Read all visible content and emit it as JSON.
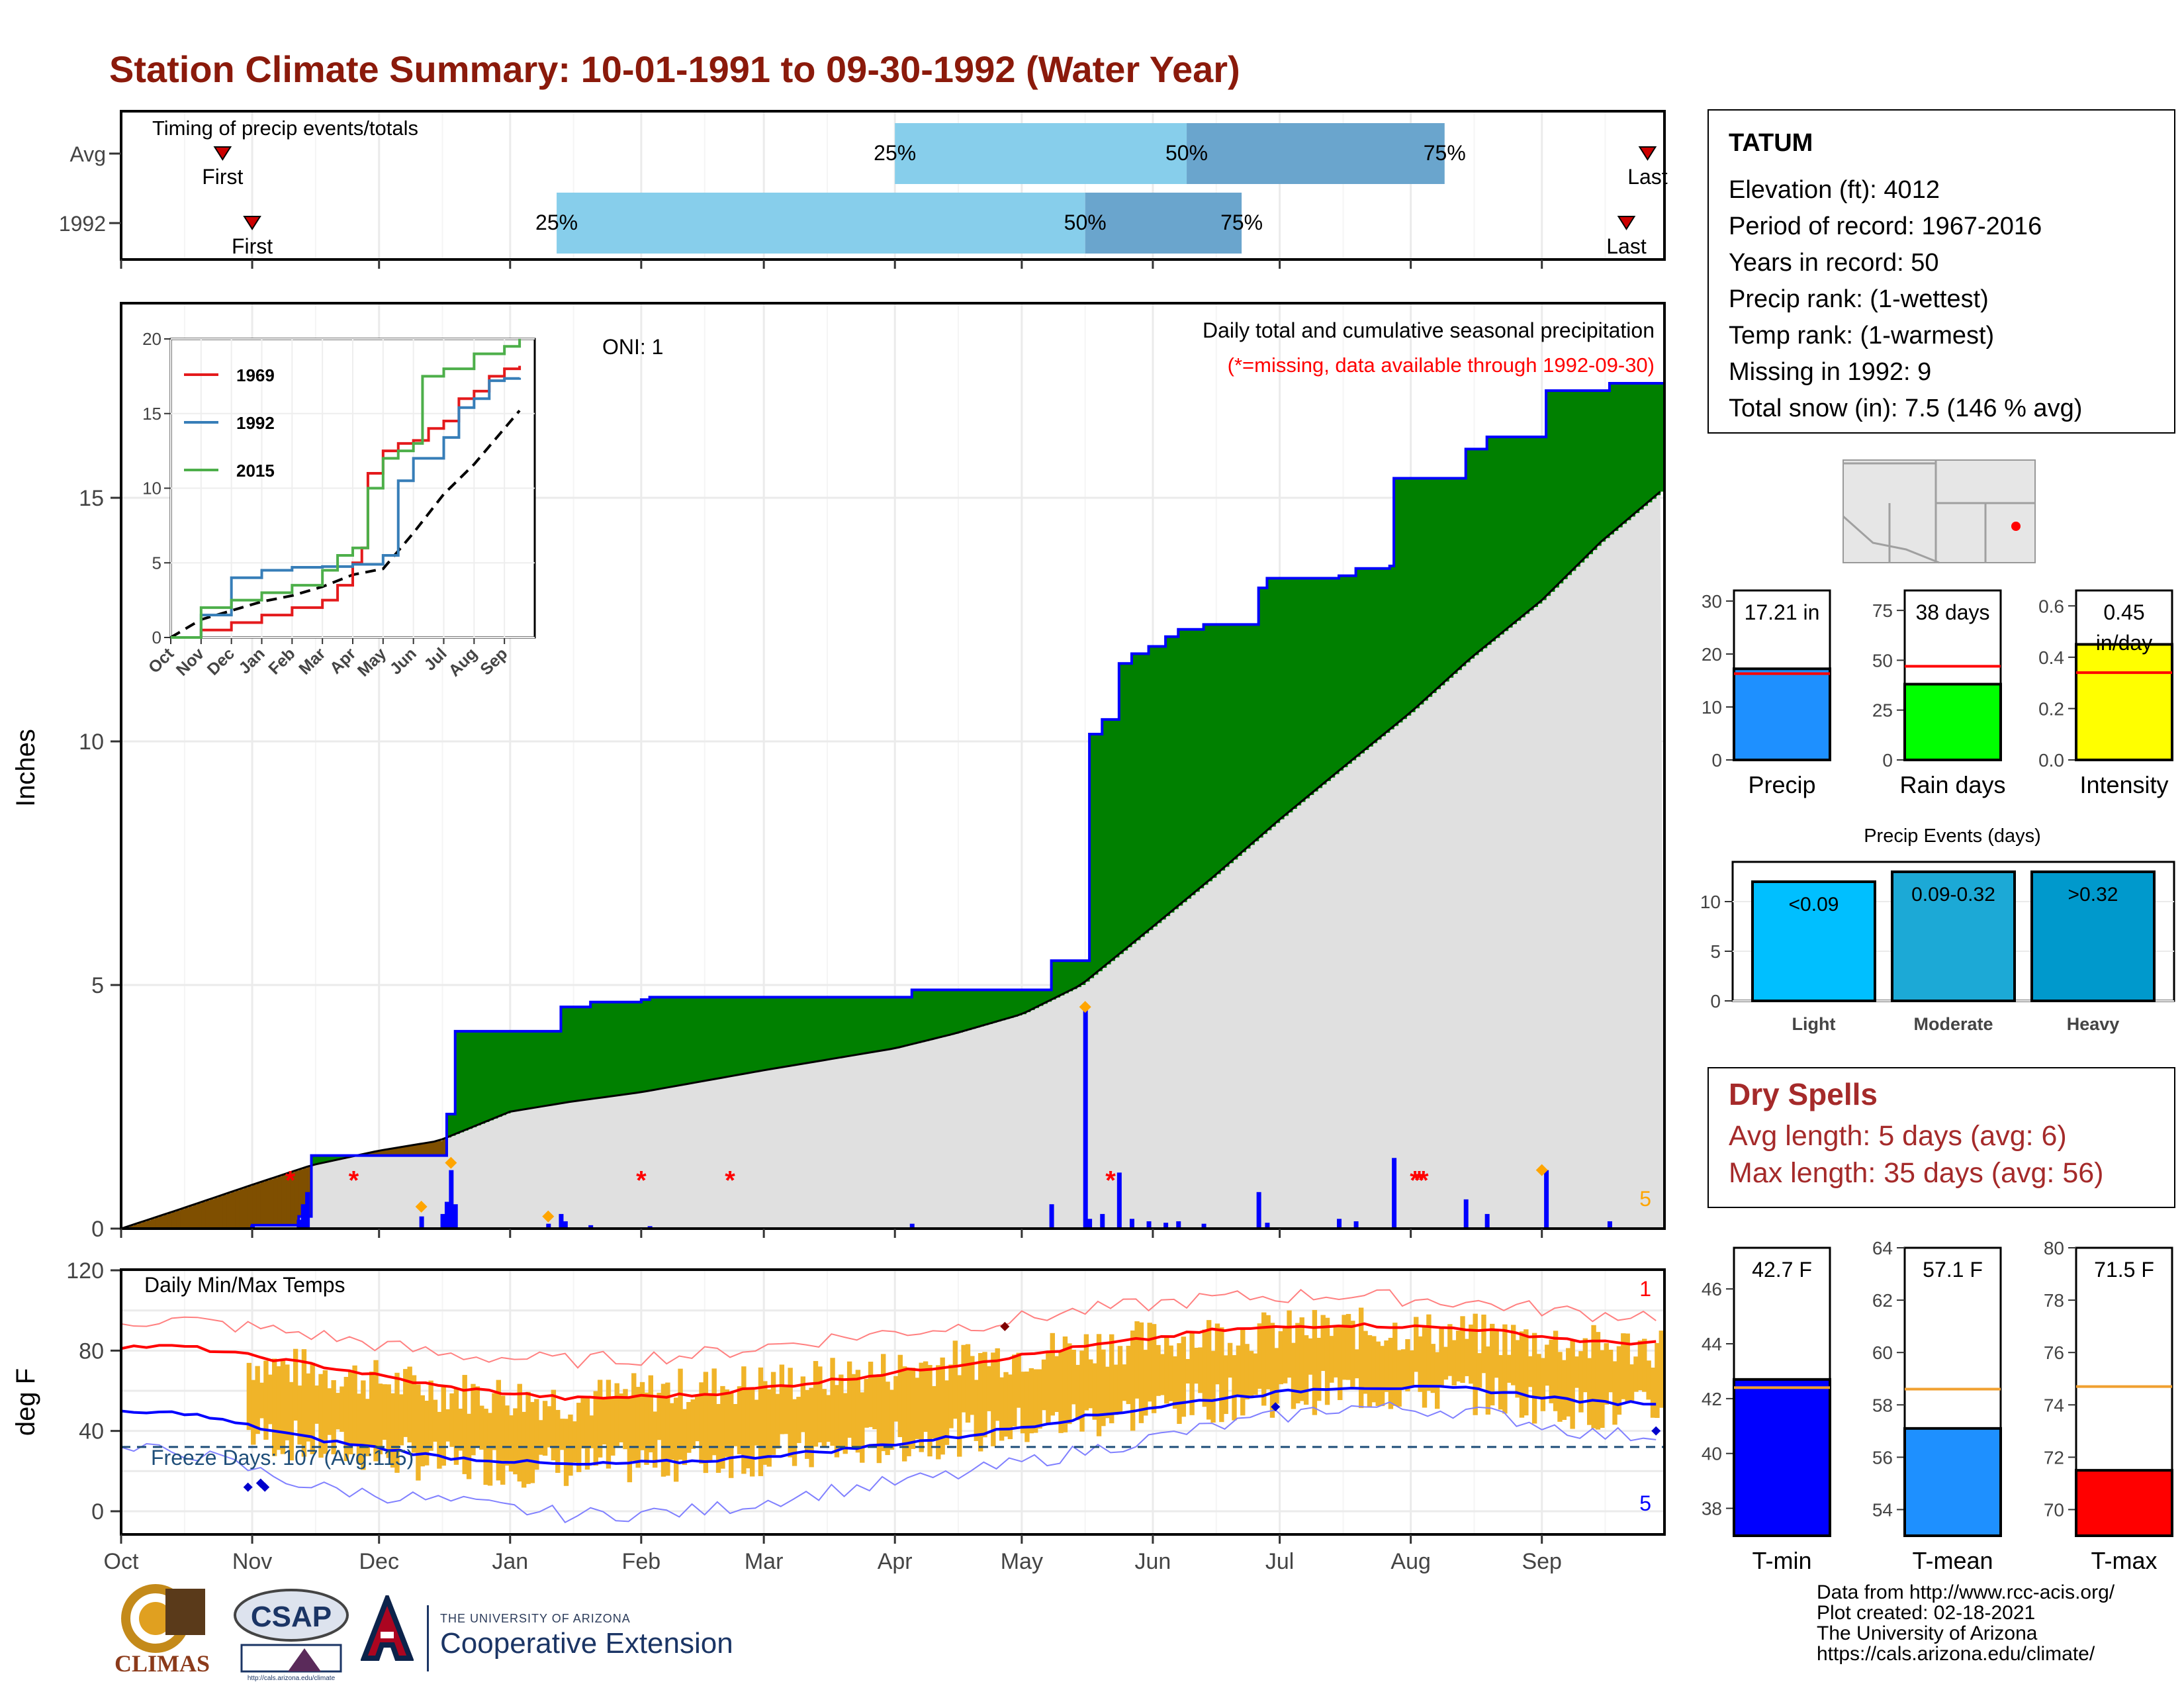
{
  "page_title": "Station Climate Summary: 10-01-1991 to 09-30-1992 (Water Year)",
  "station": {
    "name": "TATUM",
    "elevation": "Elevation (ft): 4012",
    "period": "Period of record: 1967-2016",
    "years": "Years in record: 50",
    "precip_rank": "Precip rank:  (1-wettest)",
    "temp_rank": "Temp rank:  (1-warmest)",
    "missing": "Missing in 1992: 9",
    "snow": "Total snow (in): 7.5 (146 % avg)"
  },
  "dry_spells": {
    "title": "Dry Spells",
    "avg_length": "Avg length: 5 days (avg: 6)",
    "max_length": "Max length: 35 days (avg: 56)"
  },
  "credits": {
    "line1": "Data from http://www.rcc-acis.org/",
    "line2": "Plot created: 02-18-2021",
    "line3": "The University of Arizona",
    "line4": "https://cals.arizona.edu/climate/"
  },
  "logos": {
    "climas": "CLIMAS",
    "csap": "CSAP",
    "ua_small": "THE UNIVERSITY OF ARIZONA",
    "ua_big": "Cooperative Extension",
    "csap_url": "http://cals.arizona.edu/climate"
  },
  "colors": {
    "title": "#8b1a0b",
    "above_avg": "#008000",
    "below_avg": "#7f4f00",
    "avg_fill": "#e0e0e0",
    "series_1969": "#e41a1c",
    "series_1992": "#377eb8",
    "series_2015": "#4daf4a",
    "precip_bar": "#1e90ff",
    "rain_bar": "#00ff00",
    "intensity_bar": "#ffff00",
    "light": "#00bfff",
    "moderate": "#1ca9d6",
    "heavy": "#0099cc",
    "tmin": "#0000ff",
    "tmean": "#1e90ff",
    "tmax": "#ff0000"
  },
  "chart_data": [
    {
      "id": "timing",
      "type": "bar",
      "title": "Timing of precip events/totals",
      "categories": [
        "Avg",
        "1992"
      ],
      "x_months": [
        "Oct",
        "Nov",
        "Dec",
        "Jan",
        "Feb",
        "Mar",
        "Apr",
        "May",
        "Jun",
        "Jul",
        "Aug",
        "Sep"
      ],
      "rows": [
        {
          "label": "Avg",
          "first": "1991-10-25",
          "p25": "1992-04-01",
          "p50": "1992-06-09",
          "p75": "1992-08-09",
          "last": "1992-09-26",
          "first_label": "First",
          "last_label": "Last",
          "p25_label": "25%",
          "p50_label": "50%",
          "p75_label": "75%"
        },
        {
          "label": "1992",
          "first": "1991-11-01",
          "p25": "1992-01-12",
          "p50": "1992-05-16",
          "p75": "1992-06-22",
          "last": "1992-09-21",
          "first_label": "First",
          "last_label": "Last",
          "p25_label": "25%",
          "p50_label": "50%",
          "p75_label": "75%"
        }
      ]
    },
    {
      "id": "precip",
      "type": "area",
      "title": "Daily total and cumulative seasonal precipitation",
      "subtitle": "(*=missing, data available through 1992-09-30)",
      "oni_label": "ONI: 1",
      "corner_label": "5",
      "ylabel": "Inches",
      "ylim": [
        0,
        19
      ],
      "yticks": [
        0,
        5,
        10,
        15
      ],
      "x_months": [
        "Oct",
        "Nov",
        "Dec",
        "Jan",
        "Feb",
        "Mar",
        "Apr",
        "May",
        "Jun",
        "Jul",
        "Aug",
        "Sep"
      ],
      "cumulative_1992": [
        [
          "1991-10-01",
          0
        ],
        [
          "1991-11-01",
          0.07
        ],
        [
          "1991-11-12",
          0.25
        ],
        [
          "1991-11-15",
          1.5
        ],
        [
          "1991-12-16",
          1.5
        ],
        [
          "1991-12-17",
          2.35
        ],
        [
          "1991-12-19",
          4.05
        ],
        [
          "1992-01-11",
          4.05
        ],
        [
          "1992-01-13",
          4.55
        ],
        [
          "1992-01-20",
          4.65
        ],
        [
          "1992-02-01",
          4.7
        ],
        [
          "1992-02-03",
          4.75
        ],
        [
          "1992-04-03",
          4.75
        ],
        [
          "1992-04-05",
          4.9
        ],
        [
          "1992-05-01",
          4.9
        ],
        [
          "1992-05-08",
          5.5
        ],
        [
          "1992-05-16",
          5.5
        ],
        [
          "1992-05-17",
          10.15
        ],
        [
          "1992-05-20",
          10.45
        ],
        [
          "1992-05-24",
          11.6
        ],
        [
          "1992-05-27",
          11.8
        ],
        [
          "1992-05-31",
          11.95
        ],
        [
          "1992-06-04",
          12.15
        ],
        [
          "1992-06-07",
          12.3
        ],
        [
          "1992-06-13",
          12.4
        ],
        [
          "1992-06-26",
          13.15
        ],
        [
          "1992-06-28",
          13.35
        ],
        [
          "1992-07-15",
          13.4
        ],
        [
          "1992-07-19",
          13.55
        ],
        [
          "1992-07-27",
          13.6
        ],
        [
          "1992-07-28",
          15.4
        ],
        [
          "1992-08-13",
          15.4
        ],
        [
          "1992-08-14",
          16.0
        ],
        [
          "1992-08-19",
          16.25
        ],
        [
          "1992-09-01",
          16.25
        ],
        [
          "1992-09-02",
          17.2
        ],
        [
          "1992-09-16",
          17.2
        ],
        [
          "1992-09-17",
          17.35
        ],
        [
          "1992-09-30",
          17.35
        ]
      ],
      "cumulative_avg": [
        [
          "1991-10-01",
          0
        ],
        [
          "1991-10-15",
          0.4
        ],
        [
          "1991-11-01",
          0.9
        ],
        [
          "1991-11-15",
          1.3
        ],
        [
          "1991-12-01",
          1.6
        ],
        [
          "1991-12-15",
          1.8
        ],
        [
          "1992-01-01",
          2.4
        ],
        [
          "1992-01-15",
          2.6
        ],
        [
          "1992-02-01",
          2.8
        ],
        [
          "1992-03-01",
          3.25
        ],
        [
          "1992-04-01",
          3.7
        ],
        [
          "1992-04-15",
          4.0
        ],
        [
          "1992-05-01",
          4.4
        ],
        [
          "1992-05-15",
          5.0
        ],
        [
          "1992-06-01",
          6.2
        ],
        [
          "1992-06-15",
          7.2
        ],
        [
          "1992-07-01",
          8.4
        ],
        [
          "1992-07-15",
          9.4
        ],
        [
          "1992-08-01",
          10.6
        ],
        [
          "1992-08-15",
          11.7
        ],
        [
          "1992-09-01",
          12.9
        ],
        [
          "1992-09-15",
          14.1
        ],
        [
          "1992-09-30",
          15.2
        ]
      ],
      "daily_1992": [
        [
          "1991-11-01",
          0.07
        ],
        [
          "1991-11-12",
          0.18
        ],
        [
          "1991-11-13",
          0.5
        ],
        [
          "1991-11-14",
          0.75
        ],
        [
          "1991-12-11",
          0.25
        ],
        [
          "1991-12-16",
          0.3
        ],
        [
          "1991-12-17",
          0.55
        ],
        [
          "1991-12-18",
          1.2
        ],
        [
          "1991-12-19",
          0.5
        ],
        [
          "1992-01-10",
          0.1
        ],
        [
          "1992-01-13",
          0.3
        ],
        [
          "1992-01-14",
          0.15
        ],
        [
          "1992-01-20",
          0.07
        ],
        [
          "1992-02-03",
          0.05
        ],
        [
          "1992-04-05",
          0.1
        ],
        [
          "1992-05-08",
          0.5
        ],
        [
          "1992-05-16",
          4.5
        ],
        [
          "1992-05-17",
          0.2
        ],
        [
          "1992-05-20",
          0.3
        ],
        [
          "1992-05-24",
          1.15
        ],
        [
          "1992-05-27",
          0.2
        ],
        [
          "1992-05-31",
          0.15
        ],
        [
          "1992-06-04",
          0.12
        ],
        [
          "1992-06-07",
          0.15
        ],
        [
          "1992-06-13",
          0.1
        ],
        [
          "1992-06-26",
          0.75
        ],
        [
          "1992-06-28",
          0.12
        ],
        [
          "1992-07-15",
          0.2
        ],
        [
          "1992-07-19",
          0.15
        ],
        [
          "1992-07-28",
          1.45
        ],
        [
          "1992-08-14",
          0.6
        ],
        [
          "1992-08-19",
          0.3
        ],
        [
          "1992-09-02",
          1.2
        ],
        [
          "1992-09-17",
          0.15
        ]
      ],
      "missing": [
        "1991-11-10",
        "1991-11-25",
        "1992-02-01",
        "1992-02-22",
        "1992-05-22",
        "1992-08-02",
        "1992-08-03",
        "1992-08-04"
      ],
      "snow_events": [
        [
          "1991-12-11",
          0.45
        ],
        [
          "1991-12-18",
          1.35
        ],
        [
          "1992-01-10",
          0.25
        ],
        [
          "1992-05-16",
          4.55
        ],
        [
          "1992-09-01",
          1.2
        ]
      ],
      "inset": {
        "type": "line",
        "ylim": [
          0,
          20
        ],
        "yticks": [
          0,
          5,
          10,
          15,
          20
        ],
        "x_months": [
          "Oct",
          "Nov",
          "Dec",
          "Jan",
          "Feb",
          "Mar",
          "Apr",
          "May",
          "Jun",
          "Jul",
          "Aug",
          "Sep"
        ],
        "series": [
          {
            "name": "1969",
            "points": [
              [
                0,
                0
              ],
              [
                1,
                0.5
              ],
              [
                2,
                1
              ],
              [
                3,
                1.5
              ],
              [
                4,
                2
              ],
              [
                5,
                2.5
              ],
              [
                5.5,
                3.5
              ],
              [
                6,
                5
              ],
              [
                6.3,
                6
              ],
              [
                6.5,
                11
              ],
              [
                7,
                12.5
              ],
              [
                7.5,
                13
              ],
              [
                8,
                13.2
              ],
              [
                8.5,
                14
              ],
              [
                9,
                14.5
              ],
              [
                9.5,
                16
              ],
              [
                10,
                16.5
              ],
              [
                10.5,
                17.5
              ],
              [
                11,
                18
              ],
              [
                11.5,
                18.2
              ]
            ]
          },
          {
            "name": "1992",
            "points": [
              [
                0,
                0
              ],
              [
                1,
                1.5
              ],
              [
                2,
                4
              ],
              [
                3,
                4.5
              ],
              [
                4,
                4.7
              ],
              [
                5,
                4.75
              ],
              [
                6,
                4.9
              ],
              [
                7,
                5.5
              ],
              [
                7.5,
                10.5
              ],
              [
                8,
                12
              ],
              [
                9,
                13.4
              ],
              [
                9.5,
                15.4
              ],
              [
                10,
                16
              ],
              [
                10.5,
                17.2
              ],
              [
                11,
                17.35
              ],
              [
                11.5,
                17.4
              ]
            ]
          },
          {
            "name": "2015",
            "points": [
              [
                0,
                0
              ],
              [
                1,
                2
              ],
              [
                2,
                2.5
              ],
              [
                3,
                3
              ],
              [
                4,
                3.5
              ],
              [
                5,
                4.5
              ],
              [
                5.5,
                5.5
              ],
              [
                6,
                6
              ],
              [
                6.5,
                10
              ],
              [
                7,
                12
              ],
              [
                7.5,
                12.5
              ],
              [
                8,
                13
              ],
              [
                8.3,
                17.5
              ],
              [
                9,
                18
              ],
              [
                10,
                19
              ],
              [
                11,
                19.5
              ],
              [
                11.5,
                20
              ]
            ]
          }
        ],
        "avg_points": [
          [
            0,
            0
          ],
          [
            1,
            1.2
          ],
          [
            2,
            1.8
          ],
          [
            3,
            2.4
          ],
          [
            4,
            2.8
          ],
          [
            5,
            3.4
          ],
          [
            6,
            4.2
          ],
          [
            7,
            4.6
          ],
          [
            8,
            7
          ],
          [
            9,
            9.6
          ],
          [
            10,
            11.6
          ],
          [
            11,
            14
          ],
          [
            11.5,
            15.2
          ]
        ]
      }
    },
    {
      "id": "temps",
      "type": "line",
      "title": "Daily Min/Max Temps",
      "ylabel": "deg F",
      "ylim": [
        -10,
        120
      ],
      "yticks": [
        0,
        40,
        80,
        120
      ],
      "freeze_label": "Freeze Days: 107 (Avg:115)",
      "freeze_line": 32,
      "top_right_label": "1",
      "bottom_right_label": "5",
      "x_months": [
        "Oct",
        "Nov",
        "Dec",
        "Jan",
        "Feb",
        "Mar",
        "Apr",
        "May",
        "Jun",
        "Jul",
        "Aug",
        "Sep"
      ],
      "avg_max": [
        82,
        73,
        62,
        56,
        58,
        65,
        73,
        82,
        90,
        93,
        91,
        84
      ],
      "avg_min": [
        49,
        36,
        27,
        23,
        25,
        30,
        37,
        47,
        56,
        62,
        61,
        54
      ],
      "record_max": [
        95,
        88,
        78,
        75,
        78,
        86,
        92,
        100,
        106,
        108,
        104,
        98
      ],
      "record_min": [
        30,
        12,
        5,
        -2,
        0,
        10,
        18,
        30,
        42,
        52,
        50,
        38
      ],
      "obs_max": [
        78,
        70,
        60,
        55,
        62,
        66,
        75,
        82,
        88,
        91,
        88,
        82
      ],
      "obs_min": [
        45,
        33,
        24,
        22,
        26,
        30,
        38,
        46,
        55,
        60,
        59,
        50
      ]
    },
    {
      "id": "bar_summary",
      "type": "bar",
      "bars": [
        {
          "name": "Precip",
          "value": 17.21,
          "label": "17.21 in",
          "avg": 16.3,
          "ylim": [
            0,
            32
          ],
          "yticks": [
            0,
            10,
            20,
            30
          ]
        },
        {
          "name": "Rain days",
          "value": 38,
          "label": "38 days",
          "avg": 47,
          "ylim": [
            0,
            85
          ],
          "yticks": [
            0,
            25,
            50,
            75
          ]
        },
        {
          "name": "Intensity",
          "value": 0.45,
          "label": "0.45",
          "label2": "in/day",
          "avg": 0.34,
          "ylim": [
            0,
            0.66
          ],
          "yticks": [
            0.0,
            0.2,
            0.4,
            0.6
          ]
        }
      ]
    },
    {
      "id": "precip_events",
      "type": "bar",
      "title": "Precip Events (days)",
      "categories": [
        "Light",
        "Moderate",
        "Heavy"
      ],
      "values": [
        12,
        13,
        13
      ],
      "labels": [
        "<0.09",
        "0.09-0.32",
        ">0.32"
      ],
      "ylim": [
        0,
        14
      ],
      "yticks": [
        0,
        5,
        10
      ]
    },
    {
      "id": "temp_summary",
      "type": "bar",
      "bars": [
        {
          "name": "T-min",
          "value": 42.7,
          "label": "42.7 F",
          "avg": 42.4,
          "ylim": [
            37,
            47.5
          ],
          "yticks": [
            38,
            40,
            42,
            44,
            46
          ]
        },
        {
          "name": "T-mean",
          "value": 57.1,
          "label": "57.1 F",
          "avg": 58.6,
          "ylim": [
            53,
            64
          ],
          "yticks": [
            54,
            56,
            58,
            60,
            62,
            64
          ]
        },
        {
          "name": "T-max",
          "value": 71.5,
          "label": "71.5 F",
          "avg": 74.7,
          "ylim": [
            69,
            80
          ],
          "yticks": [
            70,
            72,
            74,
            76,
            78,
            80
          ]
        }
      ]
    }
  ]
}
